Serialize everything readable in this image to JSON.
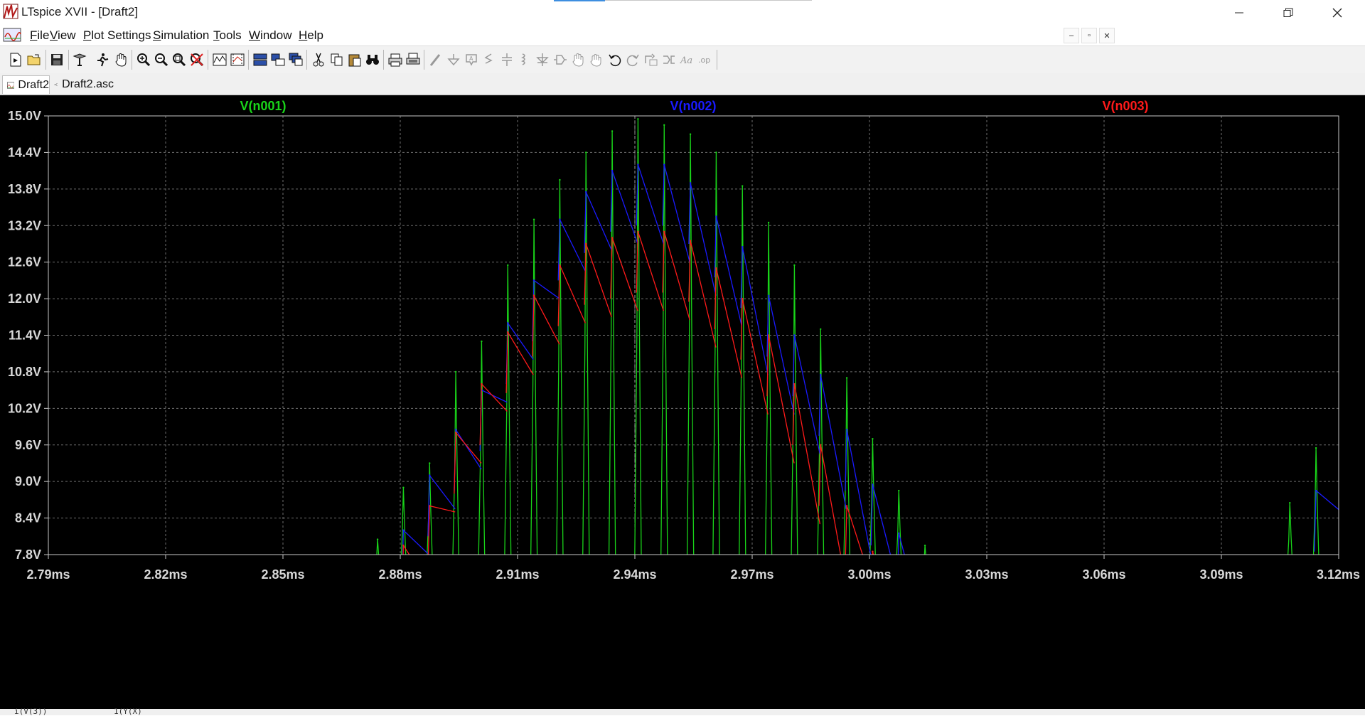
{
  "window": {
    "title": "LTspice XVII - [Draft2]"
  },
  "menu": {
    "items": [
      {
        "label": "File",
        "mnemonic": "F",
        "rest": "ile"
      },
      {
        "label": "View",
        "mnemonic": "V",
        "rest": "iew"
      },
      {
        "label": "Plot Settings",
        "mnemonic": "P",
        "rest": "lot Settings"
      },
      {
        "label": "Simulation",
        "mnemonic": "S",
        "rest": "imulation"
      },
      {
        "label": "Tools",
        "mnemonic": "T",
        "rest": "ools"
      },
      {
        "label": "Window",
        "mnemonic": "W",
        "rest": "indow"
      },
      {
        "label": "Help",
        "mnemonic": "H",
        "rest": "elp"
      }
    ]
  },
  "toolbar": {
    "icons": [
      "new-schematic-icon",
      "open-icon",
      "save-icon",
      "control-panel-icon",
      "run-icon",
      "pan-icon",
      "zoom-in-icon",
      "zoom-out-icon",
      "zoom-fit-icon",
      "zoom-cancel-icon",
      "autorange-icon",
      "manual-limits-icon",
      "tile-horizontal-icon",
      "tile-vertical-icon",
      "cascade-icon",
      "cut-icon",
      "copy-icon",
      "paste-icon",
      "find-icon",
      "print-icon",
      "print-preview-icon",
      "draw-wire-icon",
      "ground-icon",
      "label-net-icon",
      "resistor-icon",
      "capacitor-icon",
      "inductor-icon",
      "diode-icon",
      "component-icon",
      "move-icon",
      "drag-icon",
      "undo-icon",
      "redo-icon",
      "rotate-icon",
      "mirror-icon",
      "text-icon",
      "spice-directive-icon"
    ]
  },
  "tabs": [
    {
      "label": "Draft2",
      "icon": "waveform-icon",
      "active": true
    },
    {
      "label": "Draft2.asc",
      "icon": "schematic-icon",
      "active": false
    }
  ],
  "colors": {
    "bg": "#000000",
    "grid": "#6e6e6e",
    "axis": "#c8c8c8",
    "n001": "#19d419",
    "n002": "#1a1aff",
    "n003": "#ff1a1a"
  },
  "chart_data": {
    "type": "line",
    "title": "",
    "xlabel": "",
    "ylabel": "",
    "x_unit": "ms",
    "xlim": [
      2.79,
      3.12
    ],
    "ylim": [
      7.8,
      15.0
    ],
    "grid": true,
    "x_ticks": [
      "2.79ms",
      "2.82ms",
      "2.85ms",
      "2.88ms",
      "2.91ms",
      "2.94ms",
      "2.97ms",
      "3.00ms",
      "3.03ms",
      "3.06ms",
      "3.09ms",
      "3.12ms"
    ],
    "y_ticks": [
      "15.0V",
      "14.4V",
      "13.8V",
      "13.2V",
      "12.6V",
      "12.0V",
      "11.4V",
      "10.8V",
      "10.2V",
      "9.6V",
      "9.0V",
      "8.4V",
      "7.8V"
    ],
    "legend_placement": "top",
    "cursor_x": 2.94,
    "series": [
      {
        "name": "V(n001)",
        "color": "#19d419",
        "description": "narrow spikes every ~6.67us",
        "x": [
          2.8742,
          2.8808,
          2.8875,
          2.8942,
          2.9008,
          2.9075,
          2.9142,
          2.9208,
          2.9275,
          2.9342,
          2.9408,
          2.9475,
          2.9542,
          2.9608,
          2.9675,
          2.9742,
          2.9808,
          2.9875,
          2.9942,
          3.0008,
          3.0075,
          3.0142,
          3.1075,
          3.1142,
          3.1208
        ],
        "values": [
          8.05,
          8.9,
          9.3,
          10.8,
          11.3,
          12.55,
          13.3,
          13.95,
          14.4,
          14.75,
          14.95,
          14.85,
          14.7,
          14.4,
          13.85,
          13.25,
          12.55,
          11.5,
          10.7,
          9.7,
          8.85,
          7.95,
          8.65,
          9.55,
          10.5
        ]
      },
      {
        "name": "V(n002)",
        "color": "#1a1aff",
        "description": "sawtooth peaks",
        "x": [
          2.8808,
          2.8875,
          2.8942,
          2.9008,
          2.9075,
          2.9142,
          2.9208,
          2.9275,
          2.9342,
          2.9408,
          2.9475,
          2.9542,
          2.9608,
          2.9675,
          2.9742,
          2.9808,
          2.9875,
          2.9942,
          3.0008,
          3.0075,
          3.1142,
          3.1208
        ],
        "values": [
          8.2,
          9.1,
          9.85,
          10.5,
          11.6,
          12.3,
          13.3,
          13.75,
          14.1,
          14.2,
          14.2,
          13.9,
          13.35,
          12.85,
          12.05,
          11.4,
          10.75,
          9.85,
          8.95,
          8.15,
          8.85,
          9.8
        ]
      },
      {
        "name": "V(n003)",
        "color": "#ff1a1a",
        "description": "lower sawtooth peaks",
        "x": [
          2.8808,
          2.8875,
          2.8942,
          2.9008,
          2.9075,
          2.9142,
          2.9208,
          2.9275,
          2.9342,
          2.9408,
          2.9475,
          2.9542,
          2.9608,
          2.9675,
          2.9742,
          2.9808,
          2.9875,
          2.9942,
          3.0008,
          3.1208
        ],
        "values": [
          7.95,
          8.6,
          9.8,
          10.6,
          11.45,
          12.05,
          12.55,
          12.9,
          13.0,
          13.1,
          13.1,
          12.95,
          12.5,
          12.0,
          11.4,
          10.6,
          9.6,
          8.6,
          7.85,
          8.6
        ]
      }
    ]
  },
  "status": {
    "left": "i(V(3))",
    "right": "1(Y(X)"
  }
}
